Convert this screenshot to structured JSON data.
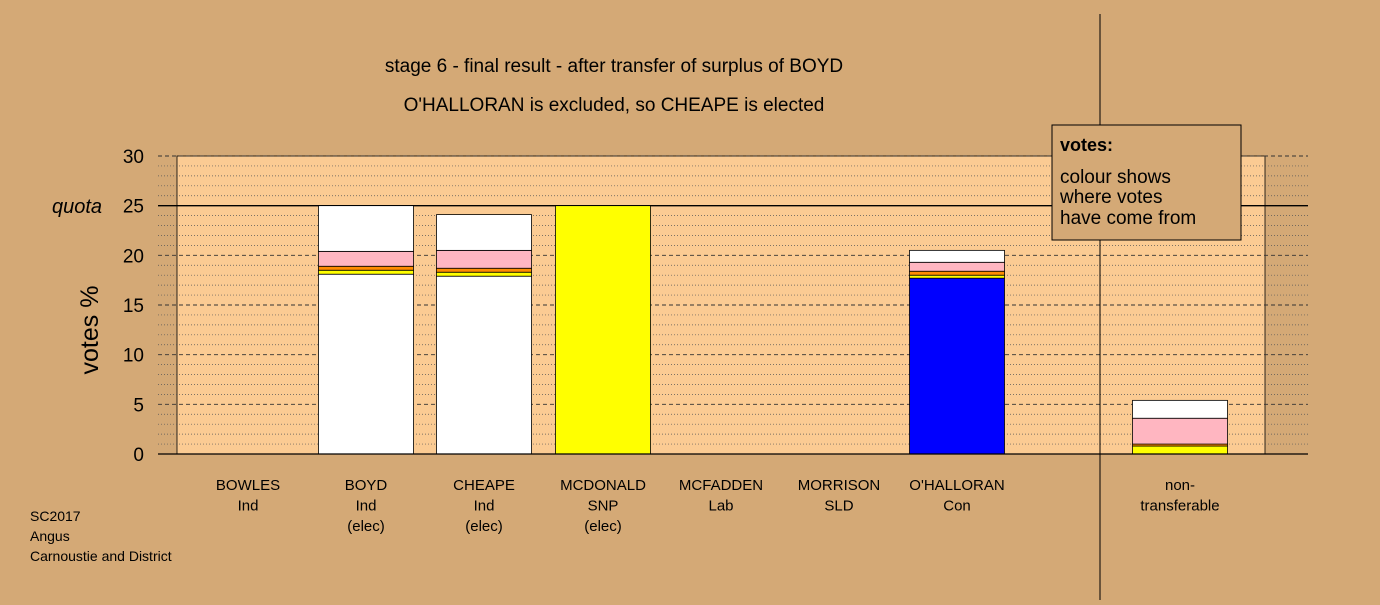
{
  "chart_data": {
    "type": "bar",
    "stacked": true,
    "title": "stage 6 - final result - after transfer of surplus of BOYD",
    "subtitle": "O'HALLORAN is excluded, so CHEAPE is elected",
    "ylabel": "votes %",
    "ylim": [
      0,
      30
    ],
    "yticks": [
      "0",
      "5",
      "10",
      "15",
      "20",
      "25",
      "30"
    ],
    "quota": {
      "label": "quota",
      "value": 25
    },
    "grid": true,
    "categories": [
      {
        "name": "BOWLES",
        "party": "Ind",
        "status": ""
      },
      {
        "name": "BOYD",
        "party": "Ind",
        "status": "(elec)"
      },
      {
        "name": "CHEAPE",
        "party": "Ind",
        "status": "(elec)"
      },
      {
        "name": "MCDONALD",
        "party": "SNP",
        "status": "(elec)"
      },
      {
        "name": "MCFADDEN",
        "party": "Lab",
        "status": ""
      },
      {
        "name": "MORRISON",
        "party": "SLD",
        "status": ""
      },
      {
        "name": "O'HALLORAN",
        "party": "Con",
        "status": ""
      },
      {
        "name": "non-",
        "party": "transferable",
        "status": ""
      }
    ],
    "bars": [
      [],
      [
        {
          "value": 18.1,
          "color": "#ffffff"
        },
        {
          "value": 0.4,
          "color": "#ffff00"
        },
        {
          "value": 0.4,
          "color": "#ff8c00"
        },
        {
          "value": 1.5,
          "color": "#ffb6c1"
        },
        {
          "value": 4.6,
          "color": "#ffffff"
        }
      ],
      [
        {
          "value": 17.9,
          "color": "#ffffff"
        },
        {
          "value": 0.4,
          "color": "#ffff00"
        },
        {
          "value": 0.4,
          "color": "#ff8c00"
        },
        {
          "value": 1.8,
          "color": "#ffb6c1"
        },
        {
          "value": 3.6,
          "color": "#ffffff"
        }
      ],
      [
        {
          "value": 25.0,
          "color": "#ffff00"
        }
      ],
      [],
      [],
      [
        {
          "value": 17.7,
          "color": "#0000ff"
        },
        {
          "value": 0.3,
          "color": "#ffff00"
        },
        {
          "value": 0.4,
          "color": "#ff8c00"
        },
        {
          "value": 0.9,
          "color": "#ffb6c1"
        },
        {
          "value": 1.2,
          "color": "#ffffff"
        }
      ],
      [
        {
          "value": 0.8,
          "color": "#ffff00"
        },
        {
          "value": 0.2,
          "color": "#ff8c00"
        },
        {
          "value": 2.6,
          "color": "#ffb6c1"
        },
        {
          "value": 1.8,
          "color": "#ffffff"
        }
      ]
    ],
    "legend": {
      "title": "votes:",
      "lines": [
        "colour shows",
        "where votes",
        "have come from"
      ],
      "position": "top-right"
    },
    "colors": {
      "background": "#d4a976",
      "plot_area": "#fbcb93"
    }
  },
  "footer": {
    "lines": [
      "SC2017",
      "Angus",
      "Carnoustie and District"
    ]
  }
}
